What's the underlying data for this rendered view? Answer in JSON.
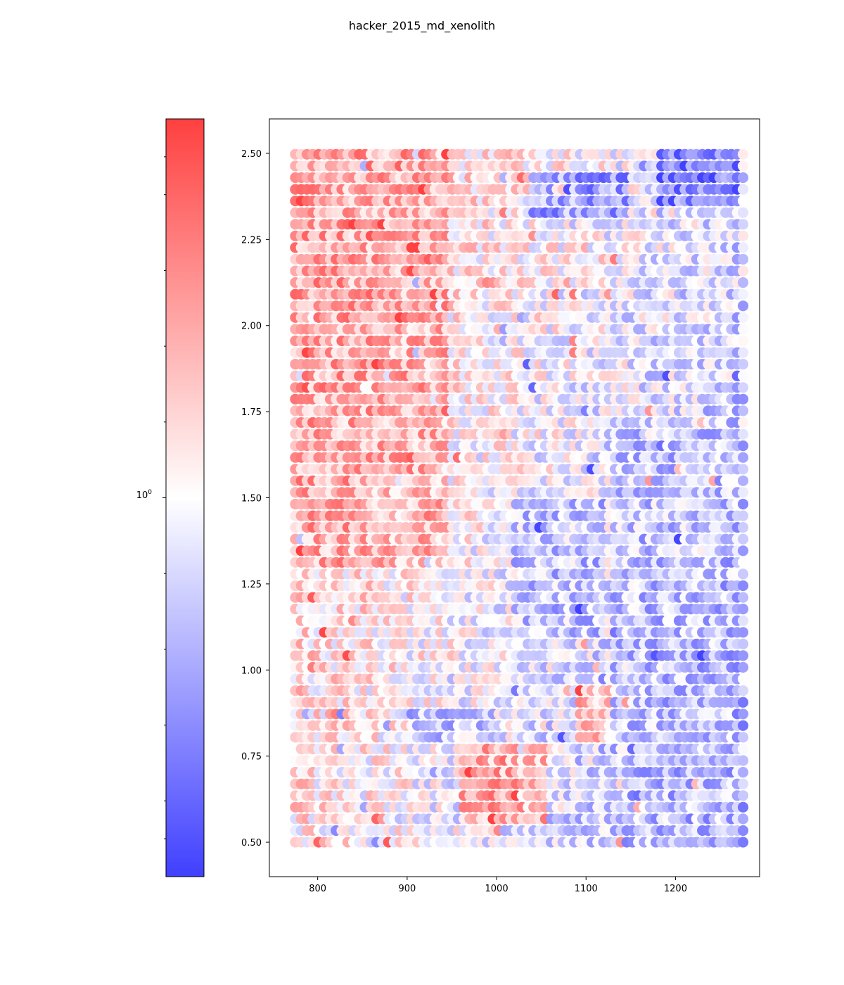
{
  "chart_data": {
    "type": "scatter",
    "title": "hacker_2015_md_xenolith",
    "xlabel": "",
    "ylabel": "",
    "xlim": [
      746,
      1294
    ],
    "ylim": [
      0.4,
      2.6
    ],
    "xticks": [
      800,
      900,
      1000,
      1100,
      1200
    ],
    "xtick_labels": [
      "800",
      "900",
      "1000",
      "1100",
      "1200"
    ],
    "yticks": [
      0.5,
      0.75,
      1.0,
      1.25,
      1.5,
      1.75,
      2.0,
      2.25,
      2.5
    ],
    "ytick_labels": [
      "0.50",
      "0.75",
      "1.00",
      "1.25",
      "1.50",
      "1.75",
      "2.00",
      "2.25",
      "2.50"
    ],
    "grid": false,
    "colormap": "bwr",
    "colorbar": {
      "position": "left",
      "scale": "log",
      "tick_label_base": "10",
      "tick_label_exponent": "0",
      "low_color": "#4040ff",
      "mid_color": "#ffffff",
      "high_color": "#ff4040"
    },
    "x_grid": {
      "start": 775,
      "step": 6.5,
      "count": 78
    },
    "y_grid": {
      "start": 0.5,
      "step": 0.03385,
      "count": 60
    },
    "marker_note": "Dense regular grid of circular markers; color encodes a log-scaled value around 10^0, red above, blue below.",
    "regions": [
      {
        "x_range": [
          775,
          950
        ],
        "y_range": [
          1.3,
          2.5
        ],
        "level": 0.55
      },
      {
        "x_range": [
          960,
          1060
        ],
        "y_range": [
          0.55,
          0.8
        ],
        "level": 0.7
      },
      {
        "x_range": [
          1090,
          1130
        ],
        "y_range": [
          0.8,
          0.95
        ],
        "level": 0.65
      },
      {
        "x_range": [
          1180,
          1270
        ],
        "y_range": [
          2.35,
          2.5
        ],
        "level": -0.9
      },
      {
        "x_range": [
          1040,
          1150
        ],
        "y_range": [
          2.3,
          2.45
        ],
        "level": -0.75
      },
      {
        "x_range": [
          1130,
          1270
        ],
        "y_range": [
          0.5,
          1.7
        ],
        "level": -0.35
      },
      {
        "x_range": [
          1020,
          1120
        ],
        "y_range": [
          1.1,
          1.5
        ],
        "level": -0.4
      },
      {
        "x_range": [
          900,
          1000
        ],
        "y_range": [
          0.8,
          0.9
        ],
        "level": -0.45
      }
    ]
  }
}
